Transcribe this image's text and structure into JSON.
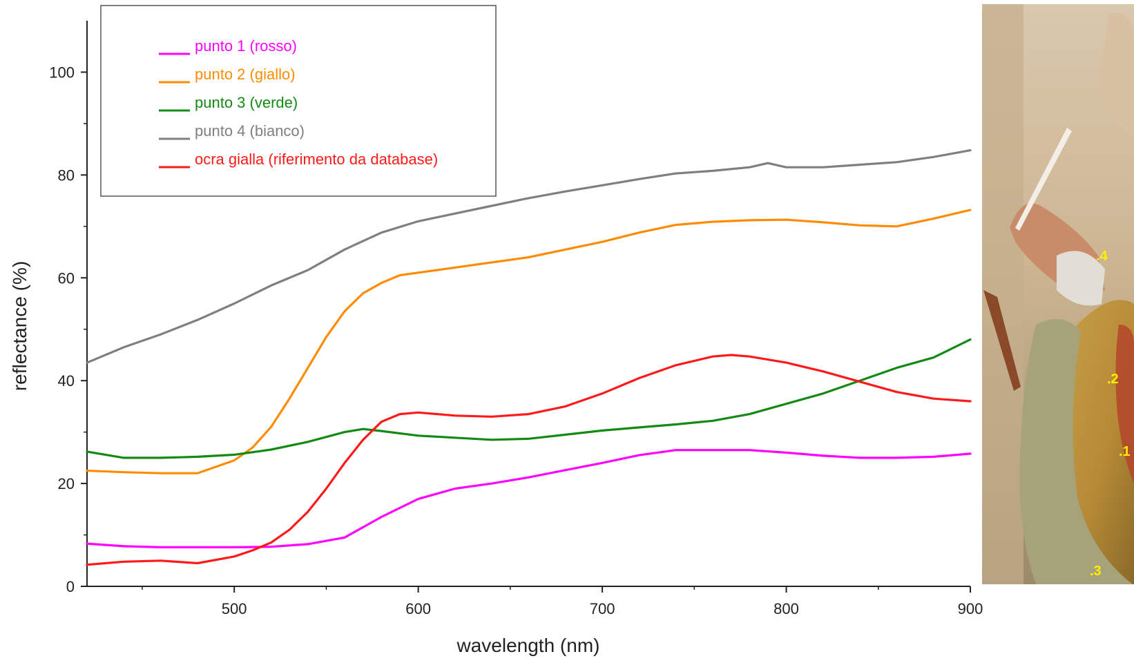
{
  "chart_data": {
    "type": "line",
    "xlabel": "wavelength (nm)",
    "ylabel": "reflectance (%)",
    "xlim": [
      420,
      900
    ],
    "ylim": [
      0,
      110
    ],
    "x_ticks": [
      500,
      600,
      700,
      800,
      900
    ],
    "y_ticks": [
      0,
      20,
      40,
      60,
      80,
      100
    ],
    "legend_position": "top-left",
    "series": [
      {
        "name": "punto 1 (rosso)",
        "color": "#ff00ff",
        "x": [
          420,
          440,
          460,
          480,
          500,
          520,
          540,
          560,
          580,
          600,
          620,
          640,
          660,
          680,
          700,
          720,
          740,
          760,
          780,
          800,
          820,
          840,
          860,
          880,
          900
        ],
        "y": [
          8.3,
          7.8,
          7.6,
          7.6,
          7.6,
          7.7,
          8.2,
          9.5,
          13.5,
          17.0,
          19.0,
          20.0,
          21.2,
          22.6,
          24.0,
          25.5,
          26.5,
          26.5,
          26.5,
          26.0,
          25.4,
          25.0,
          25.0,
          25.2,
          25.8
        ]
      },
      {
        "name": "punto 2 (giallo)",
        "color": "#ff8c00",
        "x": [
          420,
          440,
          460,
          480,
          500,
          510,
          520,
          530,
          540,
          550,
          560,
          570,
          580,
          590,
          600,
          620,
          640,
          660,
          680,
          700,
          720,
          740,
          760,
          780,
          800,
          820,
          840,
          860,
          880,
          900
        ],
        "y": [
          22.5,
          22.2,
          22.0,
          22.0,
          24.5,
          27.0,
          31.0,
          36.5,
          42.5,
          48.5,
          53.5,
          57.0,
          59.0,
          60.5,
          61.0,
          62.0,
          63.0,
          64.0,
          65.5,
          67.0,
          68.8,
          70.3,
          70.9,
          71.2,
          71.3,
          70.8,
          70.2,
          70.0,
          71.5,
          73.2
        ]
      },
      {
        "name": "punto 3 (verde)",
        "color": "#138a13",
        "x": [
          420,
          440,
          460,
          480,
          500,
          520,
          540,
          560,
          570,
          580,
          600,
          620,
          640,
          660,
          680,
          700,
          720,
          740,
          760,
          780,
          800,
          820,
          840,
          860,
          880,
          900
        ],
        "y": [
          26.2,
          25.0,
          25.0,
          25.2,
          25.6,
          26.6,
          28.1,
          30.0,
          30.6,
          30.2,
          29.3,
          28.9,
          28.5,
          28.7,
          29.5,
          30.3,
          30.9,
          31.5,
          32.2,
          33.5,
          35.5,
          37.5,
          40.0,
          42.5,
          44.5,
          48.0
        ]
      },
      {
        "name": "punto 4 (bianco)",
        "color": "#7f7f7f",
        "x": [
          420,
          440,
          460,
          480,
          500,
          520,
          540,
          560,
          580,
          600,
          620,
          640,
          660,
          680,
          700,
          720,
          740,
          760,
          780,
          790,
          800,
          820,
          840,
          860,
          880,
          900
        ],
        "y": [
          43.5,
          46.5,
          49.0,
          51.8,
          55.0,
          58.5,
          61.5,
          65.5,
          68.8,
          71.0,
          72.5,
          74.0,
          75.5,
          76.8,
          78.0,
          79.2,
          80.3,
          80.8,
          81.5,
          82.3,
          81.5,
          81.5,
          82.0,
          82.5,
          83.5,
          84.8
        ]
      },
      {
        "name": "ocra gialla (riferimento da database)",
        "color": "#ff1a1a",
        "x": [
          420,
          440,
          460,
          480,
          500,
          510,
          520,
          530,
          540,
          550,
          560,
          570,
          580,
          590,
          600,
          620,
          640,
          660,
          680,
          700,
          720,
          740,
          760,
          770,
          780,
          800,
          820,
          840,
          860,
          880,
          900
        ],
        "y": [
          4.2,
          4.8,
          5.0,
          4.5,
          5.8,
          7.0,
          8.5,
          11.0,
          14.5,
          19.0,
          24.0,
          28.5,
          32.0,
          33.5,
          33.8,
          33.2,
          33.0,
          33.5,
          35.0,
          37.5,
          40.5,
          43.0,
          44.7,
          45.0,
          44.7,
          43.5,
          41.8,
          39.8,
          37.8,
          36.5,
          36.0
        ]
      }
    ]
  },
  "photo": {
    "point_labels": [
      ".4",
      ".2",
      ".1",
      ".3"
    ],
    "label_color": "#ffee00"
  }
}
